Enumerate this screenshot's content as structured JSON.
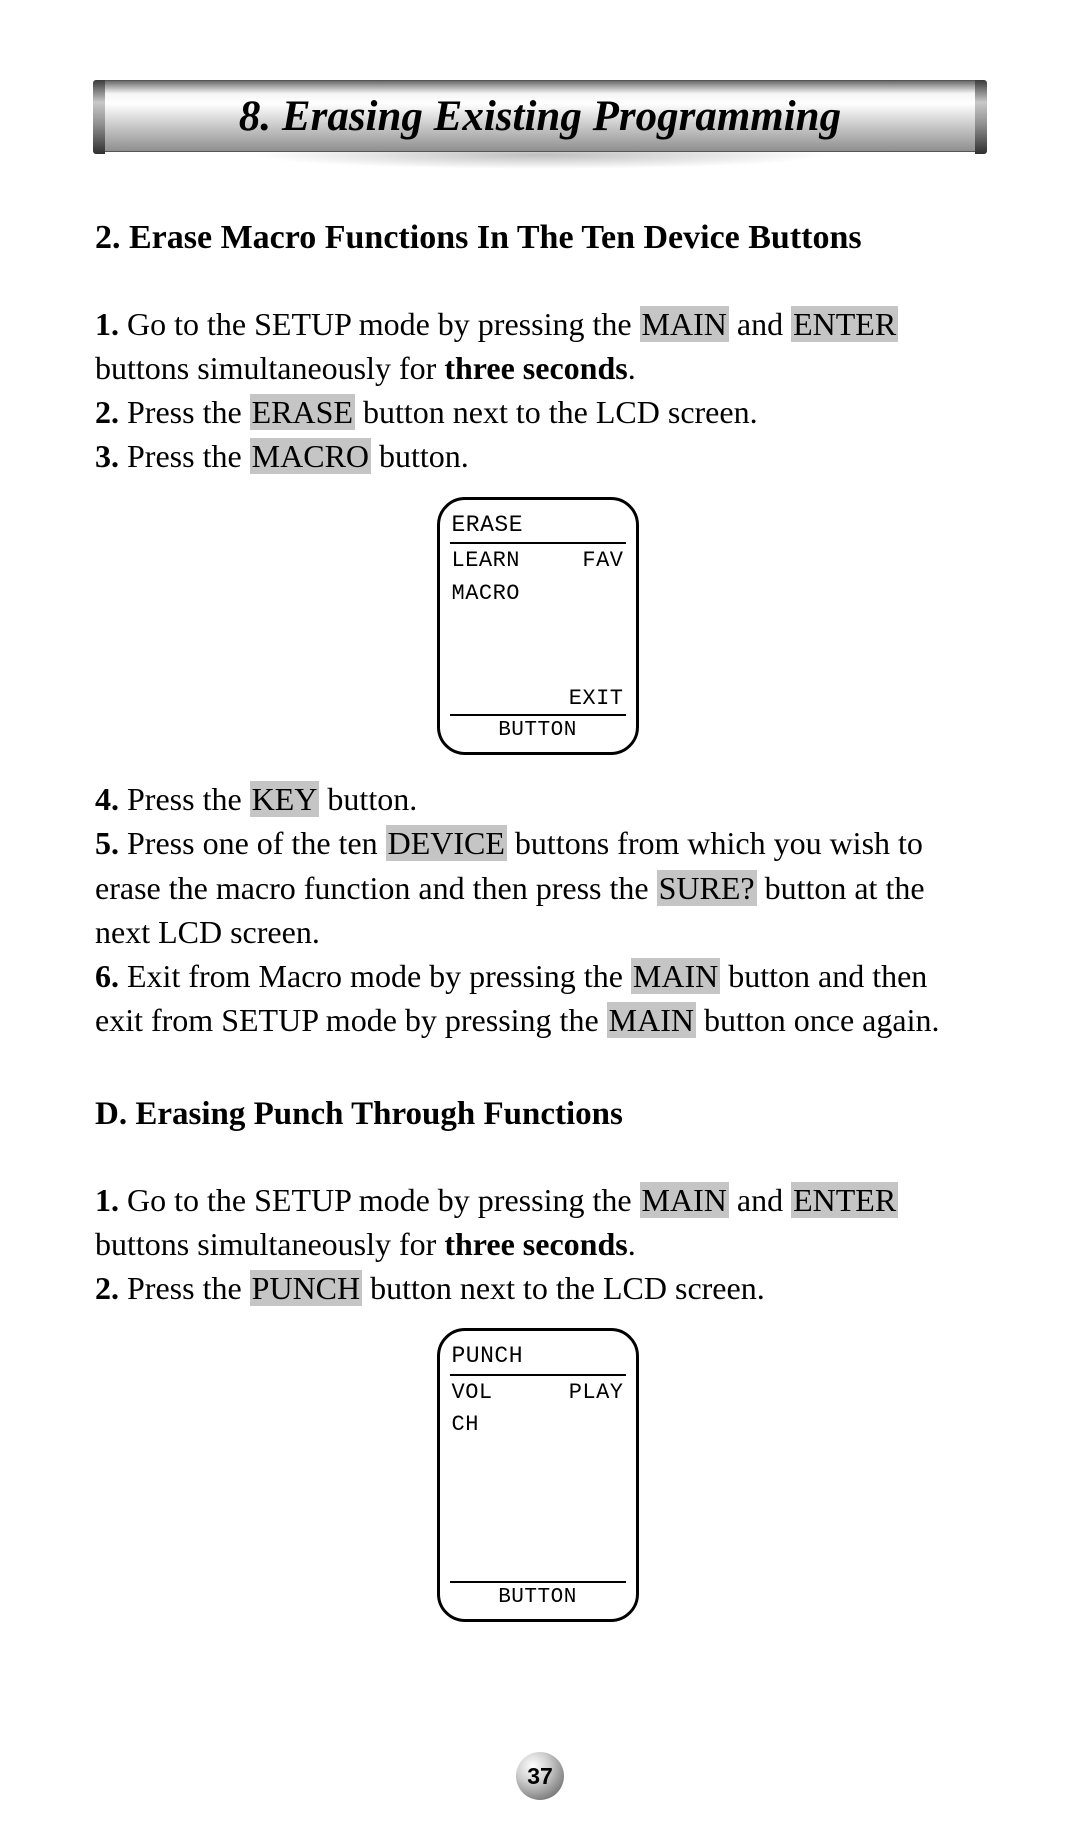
{
  "colors": {
    "highlight_bg": "#c5c5c5",
    "page_bg": "#ffffff",
    "text": "#000000"
  },
  "title": "8. Erasing Existing Programming",
  "section_c2_heading": "2. Erase Macro Functions In The Ten Device Buttons",
  "c2": {
    "s1_n": "1.",
    "s1_t1": " Go to the SETUP mode by pressing the ",
    "s1_hl1": "MAIN",
    "s1_t2": " and ",
    "s1_hl2": "ENTER",
    "s1_t3": " buttons simultaneously for ",
    "s1_b": "three seconds",
    "s1_t4": ".",
    "s2_n": "2.",
    "s2_t1": " Press the ",
    "s2_hl1": "ERASE",
    "s2_t2": " button next to the LCD screen.",
    "s3_n": "3.",
    "s3_t1": " Press the  ",
    "s3_hl1": " MACRO",
    "s3_t2": " button.",
    "s4_n": "4.",
    "s4_t1": " Press the ",
    "s4_hl1": "KEY",
    "s4_t2": " button.",
    "s5_n": "5.",
    "s5_t1": " Press one of the ten ",
    "s5_hl1": "DEVICE",
    "s5_t2": " buttons from which you wish to erase the macro function and then press the ",
    "s5_hl2": "SURE?",
    "s5_t3": " button at the next LCD screen.",
    "s6_n": "6.",
    "s6_t1": " Exit from Macro mode by pressing the ",
    "s6_hl1": "MAIN",
    "s6_t2": " button and then exit from SETUP mode by pressing the ",
    "s6_hl2": "MAIN",
    "s6_t3": " button once again."
  },
  "fig1": {
    "title": "ERASE",
    "row1_left": "LEARN",
    "row1_right": "FAV",
    "row2_left": "MACRO",
    "exit": "EXIT",
    "footer": "BUTTON"
  },
  "section_d_heading": "D. Erasing Punch Through Functions",
  "d": {
    "s1_n": "1.",
    "s1_t1": " Go to the SETUP mode by pressing the ",
    "s1_hl1": "MAIN",
    "s1_t2": " and ",
    "s1_hl2": "ENTER",
    "s1_t3": " buttons simultaneously for ",
    "s1_b": "three seconds",
    "s1_t4": ".",
    "s2_n": "2.",
    "s2_t1": " Press the ",
    "s2_hl1": "PUNCH",
    "s2_t2": " button next to the LCD screen."
  },
  "fig2": {
    "title": "PUNCH",
    "row1_left": "VOL",
    "row1_right": "PLAY",
    "row2_left": "CH",
    "footer": "BUTTON"
  },
  "page_number": "37"
}
